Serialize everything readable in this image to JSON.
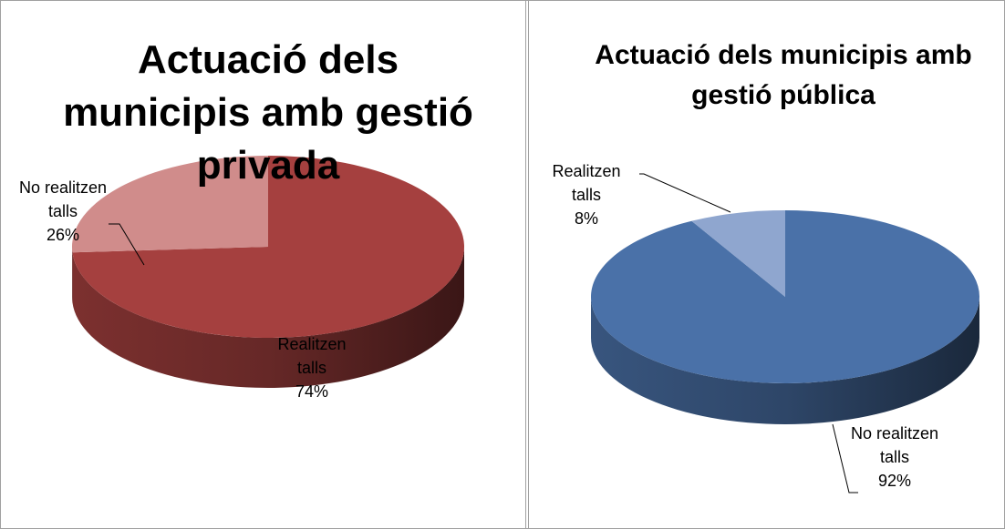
{
  "chart_data": [
    {
      "type": "pie",
      "title": "Actuació dels municipis amb gestió privada",
      "categories": [
        "Realitzen talls",
        "No realitzen talls"
      ],
      "values": [
        74,
        26
      ],
      "value_labels": [
        "74%",
        "26%"
      ],
      "colors": [
        "#a5403f",
        "#d08c8b"
      ]
    },
    {
      "type": "pie",
      "title": "Actuació dels municipis amb gestió pública",
      "categories": [
        "No realitzen talls",
        "Realitzen talls"
      ],
      "values": [
        92,
        8
      ],
      "value_labels": [
        "92%",
        "8%"
      ],
      "colors": [
        "#4a71a8",
        "#8fa6cf"
      ]
    }
  ]
}
